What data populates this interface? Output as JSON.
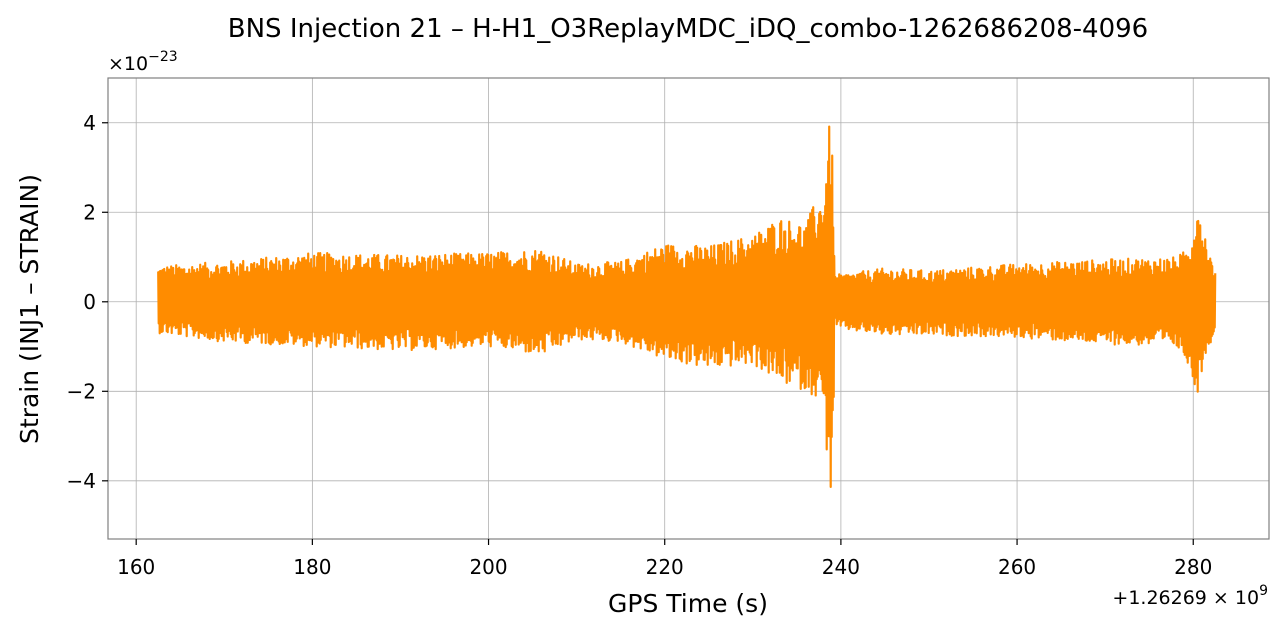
{
  "chart_data": {
    "type": "line",
    "title": "BNS Injection 21 – H-H1_O3ReplayMDC_iDQ_combo-1262686208-4096",
    "xlabel": "GPS Time (s)",
    "ylabel": "Strain (INJ1 – STRAIN)",
    "x_offset_text": "+1.26269 × 10^9",
    "y_scale_text": "×10^−23",
    "xlim": [
      156.8,
      288.6
    ],
    "ylim": [
      -5.3,
      5.0
    ],
    "x_ticks": [
      160,
      180,
      200,
      220,
      240,
      260,
      280
    ],
    "x_tick_labels": [
      "160",
      "180",
      "200",
      "220",
      "240",
      "260",
      "280"
    ],
    "y_ticks": [
      -4,
      -2,
      0,
      2,
      4
    ],
    "y_tick_labels": [
      "−4",
      "−2",
      "0",
      "2",
      "4"
    ],
    "grid": true,
    "series": [
      {
        "color": "#ff8c00",
        "x_range": [
          162.5,
          282.5
        ],
        "approx_upper_envelope": [
          [
            162.5,
            0.8
          ],
          [
            170,
            0.9
          ],
          [
            180,
            1.1
          ],
          [
            190,
            1.05
          ],
          [
            200,
            1.1
          ],
          [
            206,
            1.2
          ],
          [
            210,
            0.85
          ],
          [
            215,
            0.9
          ],
          [
            220,
            1.3
          ],
          [
            225,
            1.25
          ],
          [
            230,
            1.5
          ],
          [
            233,
            1.9
          ],
          [
            236,
            1.75
          ],
          [
            237,
            2.2
          ],
          [
            238,
            2.4
          ],
          [
            238.9,
            4.45
          ],
          [
            239.3,
            0.6
          ],
          [
            245,
            0.75
          ],
          [
            250,
            0.7
          ],
          [
            260,
            0.85
          ],
          [
            270,
            0.95
          ],
          [
            278,
            1.0
          ],
          [
            279.5,
            1.2
          ],
          [
            280.5,
            2.35
          ],
          [
            281.5,
            1.4
          ],
          [
            282.5,
            0.65
          ]
        ],
        "approx_lower_envelope": [
          [
            162.5,
            -0.7
          ],
          [
            170,
            -0.9
          ],
          [
            180,
            -1.0
          ],
          [
            190,
            -1.1
          ],
          [
            200,
            -1.0
          ],
          [
            206,
            -1.2
          ],
          [
            210,
            -0.85
          ],
          [
            215,
            -0.9
          ],
          [
            220,
            -1.3
          ],
          [
            225,
            -1.5
          ],
          [
            230,
            -1.4
          ],
          [
            233,
            -1.8
          ],
          [
            236,
            -2.0
          ],
          [
            237,
            -2.1
          ],
          [
            238,
            -2.4
          ],
          [
            239,
            -4.85
          ],
          [
            239.3,
            -0.6
          ],
          [
            245,
            -0.75
          ],
          [
            250,
            -0.75
          ],
          [
            260,
            -0.8
          ],
          [
            270,
            -0.95
          ],
          [
            278,
            -1.0
          ],
          [
            279.5,
            -1.4
          ],
          [
            280.3,
            -2.2
          ],
          [
            281.5,
            -1.1
          ],
          [
            282.5,
            -0.7
          ]
        ]
      }
    ]
  }
}
